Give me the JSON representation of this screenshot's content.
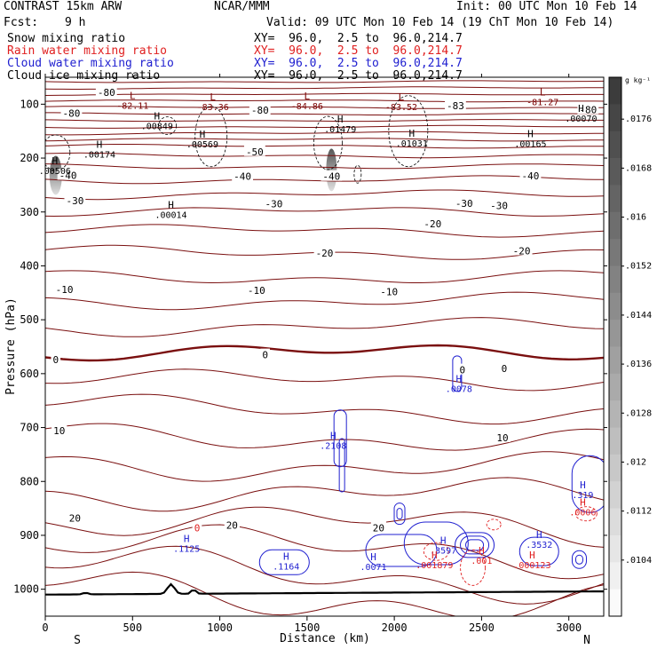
{
  "header": {
    "model": "CONTRAST 15km ARW",
    "org": "NCAR/MMM",
    "init": "Init: 00 UTC Mon 10 Feb 14",
    "fcst_label": "Fcst:",
    "fcst_value": "9 h",
    "valid": "Valid: 09 UTC Mon 10 Feb 14 (19 ChT Mon 10 Feb 14)",
    "fields": [
      {
        "name": "Snow mixing ratio",
        "xy": "XY=  96.0,  2.5 to  96.0,214.7",
        "color": "#000000"
      },
      {
        "name": "Rain water mixing ratio",
        "xy": "XY=  96.0,  2.5 to  96.0,214.7",
        "color": "#e02020"
      },
      {
        "name": "Cloud water mixing ratio",
        "xy": "XY=  96.0,  2.5 to  96.0,214.7",
        "color": "#2020d0"
      },
      {
        "name": "Cloud ice mixing ratio",
        "xy": "XY=  96.0,  2.5 to  96.0,214.7",
        "color": "#000000"
      }
    ]
  },
  "chart_data": {
    "type": "contour",
    "xlabel": "Distance (km)",
    "ylabel": "Pressure (hPa)",
    "xlim": [
      0,
      3200
    ],
    "ylim": [
      1050,
      50
    ],
    "xticks": [
      0,
      500,
      1000,
      1500,
      2000,
      2500,
      3000
    ],
    "yticks": [
      100,
      200,
      300,
      400,
      500,
      600,
      700,
      800,
      900,
      1000
    ],
    "end_labels": {
      "left": "S",
      "right": "N"
    },
    "colorbar": {
      "unit": "g kg⁻¹",
      "levels": [
        ".0104",
        ".0112",
        ".012",
        ".0128",
        ".0136",
        ".0144",
        ".0152",
        ".016",
        ".0168",
        ".0176"
      ]
    },
    "temperature_contour_labels": [
      {
        "text": "-80",
        "x": 350,
        "p": 78
      },
      {
        "text": "-80",
        "x": 150,
        "p": 117
      },
      {
        "text": "-80",
        "x": 1230,
        "p": 111
      },
      {
        "text": "-80",
        "x": 3110,
        "p": 110
      },
      {
        "text": "-83",
        "x": 2350,
        "p": 103
      },
      {
        "text": "-50",
        "x": 1200,
        "p": 188
      },
      {
        "text": "-40",
        "x": 130,
        "p": 232
      },
      {
        "text": "-40",
        "x": 1130,
        "p": 234
      },
      {
        "text": "-40",
        "x": 1640,
        "p": 234
      },
      {
        "text": "-40",
        "x": 2780,
        "p": 233
      },
      {
        "text": "-30",
        "x": 170,
        "p": 279
      },
      {
        "text": "-30",
        "x": 1310,
        "p": 285
      },
      {
        "text": "-30",
        "x": 2400,
        "p": 284
      },
      {
        "text": "-30",
        "x": 2600,
        "p": 288
      },
      {
        "text": "-20",
        "x": 2220,
        "p": 322
      },
      {
        "text": "-20",
        "x": 1600,
        "p": 376
      },
      {
        "text": "-20",
        "x": 2730,
        "p": 372
      },
      {
        "text": "-10",
        "x": 110,
        "p": 444
      },
      {
        "text": "-10",
        "x": 1210,
        "p": 445
      },
      {
        "text": "-10",
        "x": 1970,
        "p": 448
      },
      {
        "text": "0",
        "x": 60,
        "p": 574
      },
      {
        "text": "0",
        "x": 1260,
        "p": 565
      },
      {
        "text": "0",
        "x": 2390,
        "p": 593
      },
      {
        "text": "0",
        "x": 2630,
        "p": 590
      },
      {
        "text": "10",
        "x": 80,
        "p": 706
      },
      {
        "text": "10",
        "x": 2620,
        "p": 719
      },
      {
        "text": "20",
        "x": 170,
        "p": 868
      },
      {
        "text": "20",
        "x": 1070,
        "p": 881
      },
      {
        "text": "20",
        "x": 1910,
        "p": 886
      },
      {
        "text": "0",
        "x": 870,
        "p": 886
      }
    ],
    "highs_lows": [
      {
        "mark": "L",
        "value": "-82.11",
        "x": 500,
        "p": 95,
        "color": "#7a0000"
      },
      {
        "mark": "L",
        "value": "-83.36",
        "x": 960,
        "p": 98,
        "color": "#7a0000"
      },
      {
        "mark": "L",
        "value": "-84.86",
        "x": 1500,
        "p": 96,
        "color": "#7a0000"
      },
      {
        "mark": "L",
        "value": "-83.52",
        "x": 2040,
        "p": 98,
        "color": "#7a0000"
      },
      {
        "mark": "L",
        "value": "-81.27",
        "x": 2850,
        "p": 89,
        "color": "#7a0000"
      },
      {
        "mark": "H",
        "value": ".00849",
        "x": 640,
        "p": 133,
        "color": "#000000"
      },
      {
        "mark": "H",
        "value": ".00569",
        "x": 900,
        "p": 167,
        "color": "#000000"
      },
      {
        "mark": "H",
        "value": ".01479",
        "x": 1690,
        "p": 139,
        "color": "#000000"
      },
      {
        "mark": "H",
        "value": ".01031",
        "x": 2100,
        "p": 165,
        "color": "#000000"
      },
      {
        "mark": "H",
        "value": ".00070",
        "x": 3070,
        "p": 119,
        "color": "#000000"
      },
      {
        "mark": "H",
        "value": ".00174",
        "x": 310,
        "p": 186,
        "color": "#000000"
      },
      {
        "mark": "H",
        "value": ".00165",
        "x": 2780,
        "p": 166,
        "color": "#000000"
      },
      {
        "mark": "H",
        "value": ".00506",
        "x": 55,
        "p": 216,
        "color": "#000000"
      },
      {
        "mark": "H",
        "value": ".00014",
        "x": 720,
        "p": 298,
        "color": "#000000"
      },
      {
        "mark": "H",
        "value": ".0078",
        "x": 2370,
        "p": 621,
        "color": "#2020d0"
      },
      {
        "mark": "H",
        "value": ".2108",
        "x": 1650,
        "p": 726,
        "color": "#2020d0"
      },
      {
        "mark": "H",
        "value": ".319",
        "x": 3080,
        "p": 818,
        "color": "#2020d0"
      },
      {
        "mark": "H",
        "value": ".0006",
        "x": 3080,
        "p": 850,
        "color": "#e02020"
      },
      {
        "mark": "H",
        "value": ".1125",
        "x": 810,
        "p": 917,
        "color": "#2020d0"
      },
      {
        "mark": "H",
        "value": ".1164",
        "x": 1380,
        "p": 950,
        "color": "#2020d0"
      },
      {
        "mark": "H",
        "value": ".0071",
        "x": 1880,
        "p": 951,
        "color": "#2020d0"
      },
      {
        "mark": "H",
        "value": ".3597",
        "x": 2280,
        "p": 921,
        "color": "#2020d0"
      },
      {
        "mark": "H",
        "value": ".001879",
        "x": 2230,
        "p": 948,
        "color": "#e02020"
      },
      {
        "mark": "H",
        "value": ".001",
        "x": 2500,
        "p": 940,
        "color": "#e02020"
      },
      {
        "mark": "H",
        "value": ".3532",
        "x": 2830,
        "p": 910,
        "color": "#2020d0"
      },
      {
        "mark": "H",
        "value": ".000123",
        "x": 2790,
        "p": 948,
        "color": "#e02020"
      }
    ]
  }
}
